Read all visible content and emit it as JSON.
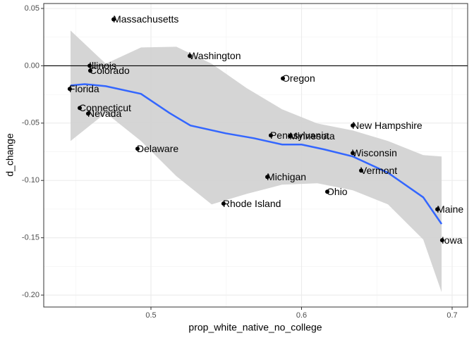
{
  "chart_data": {
    "type": "scatter",
    "x_label": "prop_white_native_no_college",
    "y_label": "d_change",
    "xlim": [
      0.4288,
      0.7103
    ],
    "ylim": [
      -0.2104,
      0.0543
    ],
    "xticks": [
      0.5,
      0.6,
      0.7
    ],
    "yticks": [
      {
        "value": 0.05,
        "label": "0.05"
      },
      {
        "value": 0,
        "label": "0.00"
      },
      {
        "value": -0.05,
        "label": "-0.05"
      },
      {
        "value": -0.1,
        "label": "-0.10"
      },
      {
        "value": -0.15,
        "label": "-0.15"
      },
      {
        "value": -0.2,
        "label": "-0.20"
      }
    ],
    "xminor": [
      0.45,
      0.55,
      0.65
    ],
    "yminor": [
      0.025,
      -0.025,
      -0.075,
      -0.125,
      -0.175
    ],
    "grid": true,
    "hline": 0,
    "point_color": "#000000",
    "labels": [
      "Massachusetts",
      "Washington",
      "Illinois",
      "Colorado",
      "Oregon",
      "Florida",
      "Connecticut",
      "Nevada",
      "New Hampshire",
      "Pennsylvania",
      "Minnesota",
      "Delaware",
      "Wisconsin",
      "Vermont",
      "Michigan",
      "Ohio",
      "Rhode Island",
      "Maine",
      "Iowa"
    ],
    "x": [
      0.4752,
      0.5258,
      0.4593,
      0.4597,
      0.5876,
      0.4461,
      0.4527,
      0.4583,
      0.634,
      0.5796,
      0.5923,
      0.4911,
      0.634,
      0.6396,
      0.5773,
      0.6171,
      0.5482,
      0.6902,
      0.6934
    ],
    "values": [
      0.0405,
      0.0086,
      0.0,
      -0.0043,
      -0.011,
      -0.0202,
      -0.0368,
      -0.0417,
      -0.0521,
      -0.0607,
      -0.0613,
      -0.0724,
      -0.0761,
      -0.0914,
      -0.0969,
      -0.1098,
      -0.1202,
      -0.1252,
      -0.1521
    ],
    "smooth": {
      "color": "#3366ff",
      "x": [
        0.4466,
        0.456,
        0.47,
        0.4934,
        0.5122,
        0.5262,
        0.5496,
        0.5684,
        0.5871,
        0.6,
        0.6152,
        0.634,
        0.6574,
        0.6808,
        0.693
      ],
      "values": [
        -0.0172,
        -0.016,
        -0.0178,
        -0.0245,
        -0.0411,
        -0.0521,
        -0.0589,
        -0.0632,
        -0.0687,
        -0.0687,
        -0.073,
        -0.0791,
        -0.0933,
        -0.1147,
        -0.138
      ]
    },
    "band": {
      "color": "#d3d3d3",
      "x": [
        0.4466,
        0.47,
        0.4934,
        0.5169,
        0.5403,
        0.5637,
        0.5871,
        0.6105,
        0.634,
        0.6574,
        0.6808,
        0.693
      ],
      "upper": [
        0.0307,
        0.0018,
        0.016,
        0.0166,
        0.0018,
        -0.0196,
        -0.038,
        -0.0503,
        -0.0564,
        -0.0656,
        -0.0779,
        -0.0791
      ],
      "lower": [
        -0.0656,
        -0.0411,
        -0.0656,
        -0.0963,
        -0.1209,
        -0.1117,
        -0.1037,
        -0.1025,
        -0.1086,
        -0.1209,
        -0.1515,
        -0.1975
      ]
    }
  }
}
